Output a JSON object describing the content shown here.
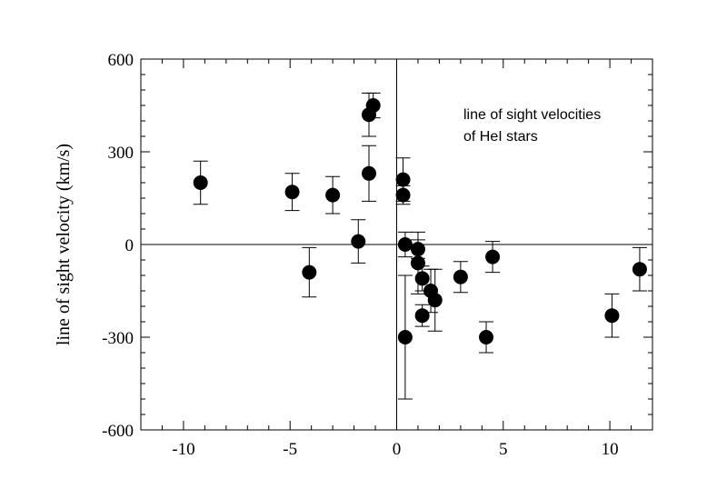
{
  "chart_data": {
    "type": "scatter",
    "title": "",
    "xlabel": "",
    "ylabel": "line of sight velocity (km/s)",
    "annotation": [
      "line of sight velocities",
      "of HeI stars"
    ],
    "xlim": [
      -12,
      12
    ],
    "ylim": [
      -600,
      600
    ],
    "x_ticks": [
      -10,
      -5,
      0,
      5,
      10
    ],
    "x_tick_labels": [
      "-10",
      "-5",
      "0",
      "5",
      "10"
    ],
    "y_ticks": [
      -600,
      -300,
      0,
      300,
      600
    ],
    "y_tick_labels": [
      "-600",
      "-300",
      "0",
      "300",
      "600"
    ],
    "grid": false,
    "zero_lines": true,
    "points": [
      {
        "x": -9.2,
        "y": 200,
        "err": 70
      },
      {
        "x": -4.9,
        "y": 170,
        "err": 60
      },
      {
        "x": -4.1,
        "y": -90,
        "err": 80
      },
      {
        "x": -3.0,
        "y": 160,
        "err": 60
      },
      {
        "x": -1.8,
        "y": 10,
        "err": 70
      },
      {
        "x": -1.3,
        "y": 420,
        "err": 70
      },
      {
        "x": -1.1,
        "y": 450,
        "err": 40
      },
      {
        "x": -1.3,
        "y": 230,
        "err": 90
      },
      {
        "x": 0.3,
        "y": 210,
        "err": 70
      },
      {
        "x": 0.3,
        "y": 160,
        "err": 30
      },
      {
        "x": 0.4,
        "y": 0,
        "err": 40
      },
      {
        "x": 0.4,
        "y": -300,
        "err": 200
      },
      {
        "x": 1.0,
        "y": -15,
        "err": 30
      },
      {
        "x": 1.0,
        "y": -60,
        "err": 100
      },
      {
        "x": 1.2,
        "y": -110,
        "err": 40
      },
      {
        "x": 1.2,
        "y": -230,
        "err": 35
      },
      {
        "x": 1.6,
        "y": -150,
        "err": 70
      },
      {
        "x": 1.8,
        "y": -180,
        "err": 100
      },
      {
        "x": 3.0,
        "y": -105,
        "err": 50
      },
      {
        "x": 4.2,
        "y": -300,
        "err": 50
      },
      {
        "x": 4.5,
        "y": -40,
        "err": 50
      },
      {
        "x": 10.1,
        "y": -230,
        "err": 70
      },
      {
        "x": 11.4,
        "y": -80,
        "err": 70
      }
    ]
  }
}
